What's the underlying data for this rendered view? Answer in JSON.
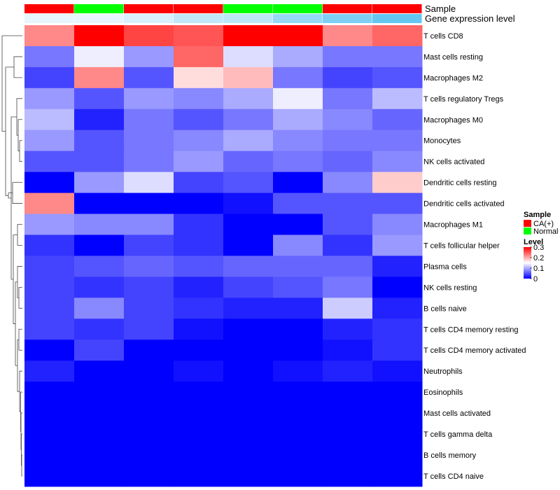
{
  "chart_data": {
    "type": "heatmap",
    "annotations": {
      "sample_track_label": "Sample",
      "expression_track_label": "Gene expression level",
      "sample": [
        "CA(+)",
        "Normal",
        "CA(+)",
        "CA(+)",
        "Normal",
        "Normal",
        "CA(+)",
        "CA(+)"
      ],
      "expression_level": [
        0.05,
        0.05,
        0.08,
        0.13,
        0.14,
        0.22,
        0.27,
        0.32
      ]
    },
    "rows": [
      "T cells CD8",
      "Mast cells resting",
      "Macrophages M2",
      "T cells regulatory  Tregs",
      "Macrophages M0",
      "Monocytes",
      "NK cells activated",
      "Dendritic cells resting",
      "Dendritic cells activated",
      "Macrophages M1",
      "T cells follicular helper",
      "Plasma cells",
      "NK cells resting",
      "B cells naive",
      "T cells CD4 memory resting",
      "T cells CD4 memory activated",
      "Neutrophils",
      "Eosinophils",
      "Mast cells activated",
      "T cells gamma delta",
      "B cells memory",
      "T cells CD4 naive"
    ],
    "values": [
      [
        0.22,
        0.3,
        0.26,
        0.25,
        0.3,
        0.3,
        0.22,
        0.24
      ],
      [
        0.07,
        0.14,
        0.09,
        0.24,
        0.13,
        0.1,
        0.07,
        0.07
      ],
      [
        0.04,
        0.22,
        0.05,
        0.17,
        0.19,
        0.07,
        0.04,
        0.05
      ],
      [
        0.09,
        0.05,
        0.09,
        0.08,
        0.1,
        0.14,
        0.07,
        0.11
      ],
      [
        0.11,
        0.02,
        0.07,
        0.05,
        0.07,
        0.1,
        0.08,
        0.06
      ],
      [
        0.09,
        0.05,
        0.07,
        0.08,
        0.1,
        0.08,
        0.07,
        0.07
      ],
      [
        0.05,
        0.05,
        0.07,
        0.09,
        0.06,
        0.07,
        0.06,
        0.08
      ],
      [
        0.0,
        0.09,
        0.13,
        0.04,
        0.05,
        0.0,
        0.08,
        0.18
      ],
      [
        0.22,
        0.0,
        0.0,
        0.0,
        0.01,
        0.05,
        0.05,
        0.05
      ],
      [
        0.09,
        0.08,
        0.08,
        0.03,
        0.0,
        0.0,
        0.05,
        0.08
      ],
      [
        0.03,
        0.0,
        0.04,
        0.03,
        0.0,
        0.08,
        0.03,
        0.09
      ],
      [
        0.04,
        0.05,
        0.06,
        0.05,
        0.06,
        0.06,
        0.06,
        0.02
      ],
      [
        0.04,
        0.03,
        0.04,
        0.02,
        0.04,
        0.05,
        0.07,
        0.0
      ],
      [
        0.04,
        0.08,
        0.04,
        0.03,
        0.02,
        0.02,
        0.12,
        0.02
      ],
      [
        0.04,
        0.03,
        0.04,
        0.01,
        0.0,
        0.0,
        0.02,
        0.03
      ],
      [
        0.0,
        0.04,
        0.0,
        0.0,
        0.0,
        0.0,
        0.01,
        0.03
      ],
      [
        0.02,
        0.0,
        0.0,
        0.01,
        0.0,
        0.01,
        0.02,
        0.01
      ],
      [
        0.0,
        0.0,
        0.0,
        0.0,
        0.0,
        0.0,
        0.0,
        0.0
      ],
      [
        0.0,
        0.0,
        0.0,
        0.0,
        0.0,
        0.0,
        0.0,
        0.0
      ],
      [
        0.0,
        0.0,
        0.0,
        0.0,
        0.0,
        0.0,
        0.0,
        0.0
      ],
      [
        0.0,
        0.0,
        0.0,
        0.0,
        0.0,
        0.0,
        0.0,
        0.0
      ],
      [
        0.0,
        0.0,
        0.0,
        0.0,
        0.0,
        0.0,
        0.0,
        0.0
      ]
    ],
    "color_scale": {
      "low": "#0000ff",
      "mid": "#ffffff",
      "high": "#ff0000",
      "mid_value": 0.15,
      "range": [
        0,
        0.3
      ]
    },
    "sample_colors": {
      "CA(+)": "#ff0000",
      "Normal": "#00ff00"
    },
    "expression_colors": {
      "low": "#ffffff",
      "high": "#56c2f0"
    },
    "expression_range": [
      0.0,
      0.35
    ],
    "legend": {
      "sample_title": "Sample",
      "sample_entries": [
        "CA(+)",
        "Normal"
      ],
      "level_title": "Level",
      "level_ticks": [
        "0.3",
        "0.2",
        "0.1",
        "0"
      ],
      "level_tick_values": [
        0.3,
        0.2,
        0.1,
        0
      ],
      "placement": "right"
    },
    "dendrogram": {
      "side": "left",
      "shown": true
    }
  }
}
